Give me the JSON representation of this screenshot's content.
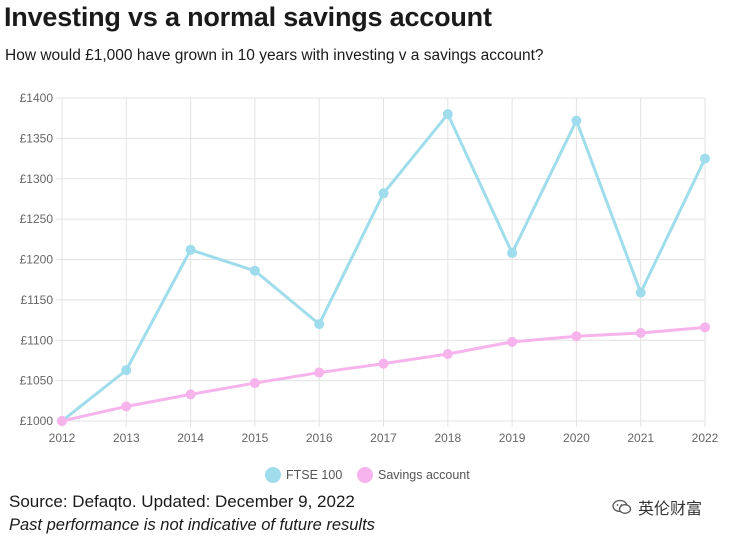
{
  "header": {
    "title": "Investing vs a normal savings account",
    "subtitle": "How would £1,000 have grown in 10 years with investing v a savings account?"
  },
  "chart_data": {
    "type": "line",
    "x": [
      "2012",
      "2013",
      "2014",
      "2015",
      "2016",
      "2017",
      "2018",
      "2019",
      "2020",
      "2021",
      "2022"
    ],
    "series": [
      {
        "name": "FTSE 100",
        "color": "#9fdcec",
        "values": [
          1000,
          1063,
          1212,
          1186,
          1120,
          1282,
          1380,
          1208,
          1372,
          1159,
          1325
        ]
      },
      {
        "name": "Savings account",
        "color": "#f6b3ec",
        "values": [
          1000,
          1018,
          1033,
          1047,
          1060,
          1071,
          1083,
          1098,
          1105,
          1109,
          1116
        ]
      }
    ],
    "ylim": [
      1000,
      1400
    ],
    "yticks": [
      1000,
      1050,
      1100,
      1150,
      1200,
      1250,
      1300,
      1350,
      1400
    ],
    "ytick_labels": [
      "£1000",
      "£1050",
      "£1100",
      "£1150",
      "£1200",
      "£1250",
      "£1300",
      "£1350",
      "£1400"
    ],
    "grid": true,
    "legend": "bottom-center"
  },
  "footer": {
    "source": "Source: Defaqto. Updated: December 9, 2022",
    "disclaimer": "Past performance is not indicative of future results"
  },
  "watermark": {
    "text": "英伦财富",
    "icon": "wechat-icon"
  }
}
